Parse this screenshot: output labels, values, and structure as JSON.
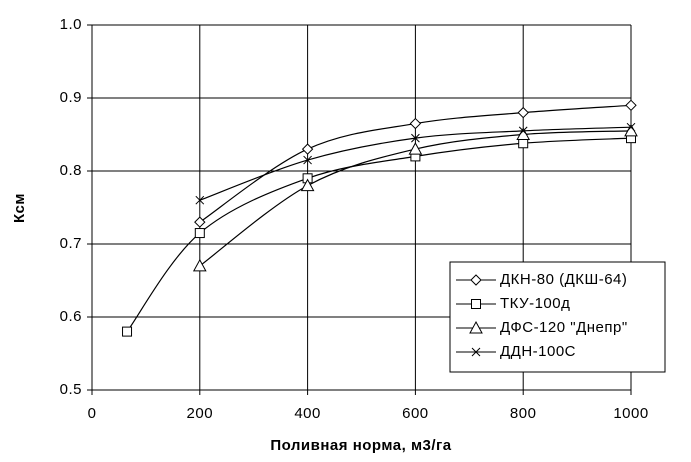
{
  "chart_data": {
    "type": "line",
    "xlabel": "Поливная норма, м3/га",
    "ylabel": "Ксм",
    "xlim": [
      0,
      1000
    ],
    "xticks": [
      0,
      200,
      400,
      600,
      800,
      1000
    ],
    "ylim": [
      0.5,
      1
    ],
    "yticks": [
      0.5,
      0.6,
      0.7,
      0.8,
      0.9,
      {
        "value": 1,
        "label": "1.0"
      }
    ],
    "grid": true,
    "legend_loc": "lower right",
    "smooth": true,
    "series": [
      {
        "name": "ДКН-80 (ДКШ-64)",
        "color": "#000000",
        "marker": "diamond",
        "x": [
          200,
          400,
          600,
          800,
          1000
        ],
        "values": [
          0.73,
          0.83,
          0.865,
          0.88,
          0.89
        ]
      },
      {
        "name": "ТКУ-100д",
        "color": "#000000",
        "marker": "square",
        "x": [
          65,
          200,
          400,
          600,
          800,
          1000
        ],
        "values": [
          0.58,
          0.715,
          0.79,
          0.82,
          0.838,
          0.845
        ]
      },
      {
        "name": "ДФС-120 \"Днепр\"",
        "color": "#000000",
        "marker": "triangle",
        "x": [
          200,
          400,
          600,
          800,
          1000
        ],
        "values": [
          0.67,
          0.78,
          0.83,
          0.85,
          0.855
        ]
      },
      {
        "name": "ДДН-100С",
        "color": "#000000",
        "marker": "x",
        "x": [
          200,
          400,
          600,
          800,
          1000
        ],
        "values": [
          0.76,
          0.815,
          0.845,
          0.855,
          0.86
        ]
      }
    ]
  }
}
